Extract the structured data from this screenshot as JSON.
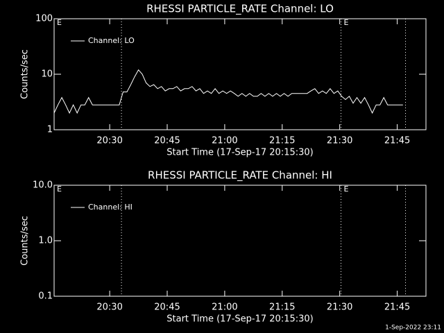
{
  "chart_data": [
    {
      "type": "line",
      "title": "RHESSI PARTICLE_RATE Channel: LO",
      "xlabel": "Start Time (17-Sep-17 20:15:30)",
      "ylabel": "Counts/sec",
      "log_y": true,
      "legend": "upper left",
      "xlim": [
        0,
        5820
      ],
      "xticks": [
        {
          "value": 870,
          "label": "20:30"
        },
        {
          "value": 1770,
          "label": "20:45"
        },
        {
          "value": 2670,
          "label": "21:00"
        },
        {
          "value": 3570,
          "label": "21:15"
        },
        {
          "value": 4470,
          "label": "21:30"
        },
        {
          "value": 5370,
          "label": "21:45"
        }
      ],
      "ylim": [
        1,
        100
      ],
      "yticks": [
        1,
        10,
        100
      ],
      "vlines": [
        1054,
        4490,
        5500
      ],
      "annotations": [
        {
          "text": "E",
          "x": 0
        },
        {
          "text": "E",
          "x": 4490
        }
      ],
      "x": [
        0,
        60,
        120,
        180,
        240,
        300,
        360,
        420,
        480,
        540,
        600,
        660,
        720,
        780,
        840,
        900,
        960,
        1020,
        1080,
        1140,
        1200,
        1260,
        1320,
        1380,
        1440,
        1500,
        1560,
        1620,
        1680,
        1740,
        1800,
        1860,
        1920,
        1980,
        2040,
        2100,
        2160,
        2220,
        2280,
        2340,
        2400,
        2460,
        2520,
        2580,
        2640,
        2700,
        2760,
        2820,
        2880,
        2940,
        3000,
        3060,
        3120,
        3180,
        3240,
        3300,
        3360,
        3420,
        3480,
        3540,
        3600,
        3660,
        3720,
        3780,
        3840,
        3900,
        3960,
        4020,
        4080,
        4140,
        4200,
        4260,
        4320,
        4380,
        4440,
        4500,
        4560,
        4620,
        4680,
        4740,
        4800,
        4860,
        4920,
        4980,
        5040,
        5100,
        5160,
        5220,
        5280,
        5340,
        5400,
        5460
      ],
      "series": [
        {
          "name": "Channel: LO",
          "color": "#ffffff",
          "values": [
            2.0,
            2.8,
            3.8,
            2.8,
            2.0,
            2.8,
            2.0,
            2.8,
            2.8,
            3.8,
            2.8,
            2.8,
            2.8,
            2.8,
            2.8,
            2.8,
            2.8,
            2.8,
            4.8,
            4.8,
            6.5,
            9,
            12,
            10,
            7,
            6,
            6.5,
            5.5,
            6,
            5,
            5.5,
            5.5,
            6,
            5,
            5.5,
            5.5,
            6,
            5,
            5.5,
            4.5,
            5,
            4.5,
            5.5,
            4.5,
            5,
            4.5,
            5,
            4.5,
            4,
            4.5,
            4,
            4.5,
            4,
            4,
            4.5,
            4,
            4.5,
            4,
            4.5,
            4,
            4.5,
            4,
            4.5,
            4.5,
            4.5,
            4.5,
            4.5,
            5,
            5.5,
            4.5,
            5,
            4.5,
            5.5,
            4.5,
            5,
            4,
            3.5,
            4,
            3,
            3.8,
            3,
            3.8,
            2.8,
            2.0,
            2.8,
            2.8,
            3.8,
            2.8,
            2.8,
            2.8,
            2.8,
            2.8
          ]
        }
      ]
    },
    {
      "type": "line",
      "title": "RHESSI PARTICLE_RATE Channel: HI",
      "xlabel": "Start Time (17-Sep-17 20:15:30)",
      "ylabel": "Counts/sec",
      "log_y": true,
      "legend": "upper left",
      "xlim": [
        0,
        5820
      ],
      "xticks": [
        {
          "value": 870,
          "label": "20:30"
        },
        {
          "value": 1770,
          "label": "20:45"
        },
        {
          "value": 2670,
          "label": "21:00"
        },
        {
          "value": 3570,
          "label": "21:15"
        },
        {
          "value": 4470,
          "label": "21:30"
        },
        {
          "value": 5370,
          "label": "21:45"
        }
      ],
      "ylim": [
        0.1,
        10
      ],
      "yticks": [
        0.1,
        {
          "value": 1,
          "label": "1.0"
        },
        {
          "value": 10,
          "label": "10.0"
        }
      ],
      "vlines": [
        1054,
        4490,
        5500
      ],
      "annotations": [
        {
          "text": "E",
          "x": 0
        },
        {
          "text": "E",
          "x": 4490
        }
      ],
      "x": [],
      "series": [
        {
          "name": "Channel: HI",
          "color": "#ffffff",
          "values": []
        }
      ]
    }
  ],
  "footer": "1-Sep-2022 23:11"
}
